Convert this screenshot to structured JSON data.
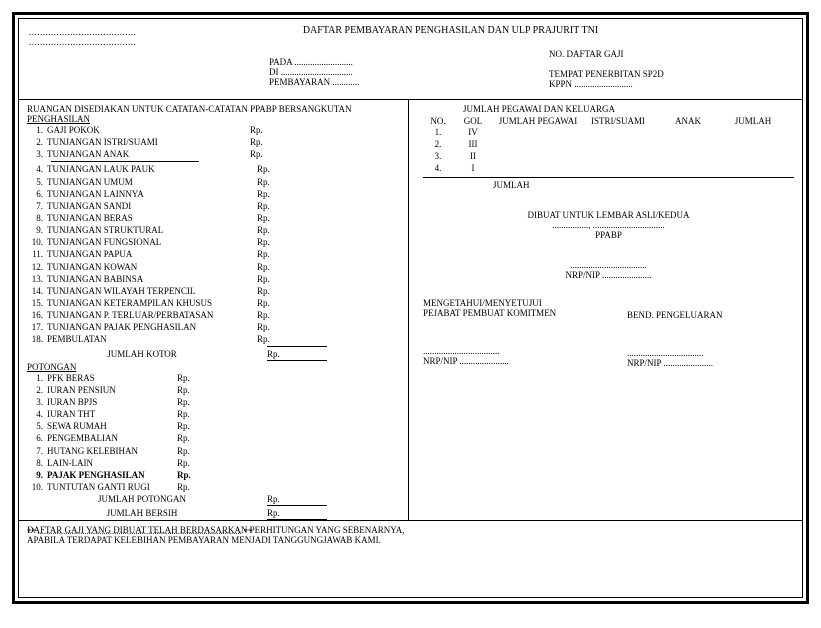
{
  "dots_long": ".......................................",
  "dots_short": "......................",
  "title": "DAFTAR PEMBAYARAN PENGHASILAN DAN ULP PRAJURIT TNI",
  "header": {
    "pada": "PADA ..........................",
    "di": "DI ................................",
    "pembayaran": "PEMBAYARAN ............",
    "no_daftar": "NO. DAFTAR GAJI",
    "tempat": "TEMPAT PENERBITAN SP2D",
    "kppn": "KPPN .........................."
  },
  "left": {
    "ruangan": "RUANGAN DISEDIAKAN UNTUK CATATAN-CATATAN PPABP BERSANGKUTAN",
    "penghasilan": "PENGHASILAN",
    "items1": [
      {
        "n": "1.",
        "t": "GAJI POKOK"
      },
      {
        "n": "2.",
        "t": "TUNJANGAN ISTRI/SUAMI"
      },
      {
        "n": "3.",
        "t": "TUNJANGAN ANAK"
      }
    ],
    "items2": [
      {
        "n": "4.",
        "t": "TUNJANGAN LAUK PAUK"
      },
      {
        "n": "5.",
        "t": "TUNJANGAN UMUM"
      },
      {
        "n": "6.",
        "t": "TUNJANGAN LAINNYA"
      },
      {
        "n": "7.",
        "t": "TUNJANGAN SANDI"
      },
      {
        "n": "8.",
        "t": "TUNJANGAN BERAS"
      },
      {
        "n": "9.",
        "t": "TUNJANGAN STRUKTURAL"
      },
      {
        "n": "10.",
        "t": "TUNJANGAN FUNGSIONAL"
      },
      {
        "n": "11.",
        "t": "TUNJANGAN PAPUA"
      },
      {
        "n": "12.",
        "t": "TUNJANGAN KOWAN"
      },
      {
        "n": "13.",
        "t": "TUNJANGAN BABINSA"
      },
      {
        "n": "14.",
        "t": "TUNJANGAN WILAYAH TERPENCIL"
      },
      {
        "n": "15.",
        "t": "TUNJANGAN KETERAMPILAN KHUSUS"
      },
      {
        "n": "16.",
        "t": "TUNJANGAN P. TERLUAR/PERBATASAN"
      },
      {
        "n": "17.",
        "t": "TUNJANGAN PAJAK PENGHASILAN"
      },
      {
        "n": "18.",
        "t": "PEMBULATAN"
      }
    ],
    "jumlah_kotor": "JUMLAH KOTOR",
    "potongan": "POTONGAN",
    "pot_items": [
      {
        "n": "1.",
        "t": "PFK BERAS"
      },
      {
        "n": "2.",
        "t": "IURAN PENSIUN"
      },
      {
        "n": "3.",
        "t": "IURAN BPJS"
      },
      {
        "n": "4.",
        "t": "IURAN THT"
      },
      {
        "n": "5.",
        "t": "SEWA RUMAH"
      },
      {
        "n": "6.",
        "t": "PENGEMBALIAN"
      },
      {
        "n": "7.",
        "t": "HUTANG KELEBIHAN"
      },
      {
        "n": "8.",
        "t": "LAIN-LAIN"
      },
      {
        "n": "9.",
        "t": "PAJAK PENGHASILAN",
        "b": true
      },
      {
        "n": "10.",
        "t": "TUNTUTAN GANTI RUGI"
      }
    ],
    "jumlah_potongan": "JUMLAH POTONGAN",
    "jumlah_bersih": "JUMLAH BERSIH",
    "foot_star": "** ................................................................................................ **",
    "rp": "Rp."
  },
  "right": {
    "title": "JUMLAH PEGAWAI DAN KELUARGA",
    "cols": {
      "no": "NO.",
      "gol": "GOL",
      "jp": "JUMLAH PEGAWAI",
      "is": "ISTRI/SUAMI",
      "an": "ANAK",
      "jm": "JUMLAH"
    },
    "rows": [
      {
        "no": "1.",
        "gol": "IV"
      },
      {
        "no": "2.",
        "gol": "III"
      },
      {
        "no": "3.",
        "gol": "II"
      },
      {
        "no": "4.",
        "gol": "I"
      }
    ],
    "jumlah": "JUMLAH",
    "dibuat": "DIBUAT UNTUK LEMBAR ASLI/KEDUA",
    "dots_line": "................, ................................",
    "ppabp": "PPABP",
    "name_dots": "..................................",
    "nrpnip": "NRP/NIP ......................",
    "mengetahui": "MENGETAHUI/MENYETUJUI",
    "pejabat": "PEJABAT PEMBUAT KOMITMEN",
    "bend": "BEND. PENGELUARAN"
  },
  "footer": {
    "l1": "DAFTAR GAJI YANG DIBUAT TELAH BERDASARKAN PERHITUNGAN YANG SEBENARNYA,",
    "l2": "APABILA TERDAPAT KELEBIHAN PEMBAYARAN MENJADI TANGGUNGJAWAB KAMI."
  }
}
